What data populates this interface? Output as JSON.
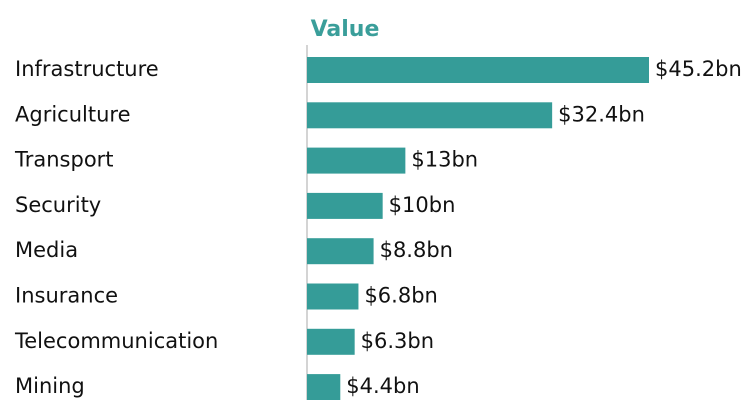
{
  "chart_data": {
    "type": "bar",
    "orientation": "horizontal",
    "title": "Value",
    "categories": [
      "Infrastructure",
      "Agriculture",
      "Transport",
      "Security",
      "Media",
      "Insurance",
      "Telecommunication",
      "Mining"
    ],
    "values": [
      45.2,
      32.4,
      13,
      10,
      8.8,
      6.8,
      6.3,
      4.4
    ],
    "value_labels": [
      "$45.2bn",
      "$32.4bn",
      "$13bn",
      "$10bn",
      "$8.8bn",
      "$6.8bn",
      "$6.3bn",
      "$4.4bn"
    ],
    "color": "#359c98"
  }
}
